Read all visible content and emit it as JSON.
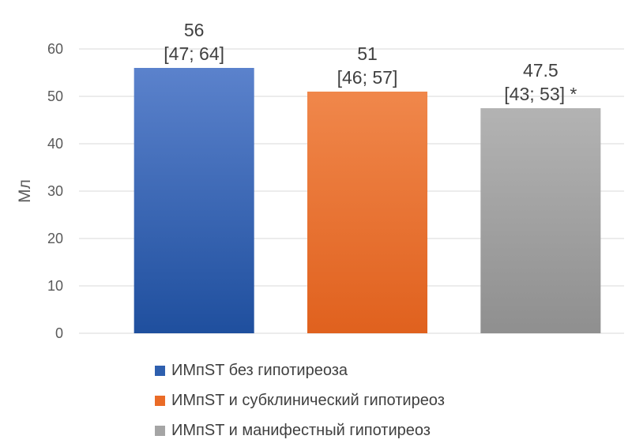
{
  "chart_data": {
    "type": "bar",
    "ylabel": "Мл",
    "ylim": [
      0,
      60
    ],
    "yticks": [
      0,
      10,
      20,
      30,
      40,
      50,
      60
    ],
    "grid": true,
    "legend_position": "bottom",
    "series": [
      {
        "name": "ИМпST без гипотиреоза",
        "value": 56,
        "label_lines": [
          "56",
          "[47; 64]"
        ],
        "color": "#2e5fae",
        "gradient": [
          "#5b82cc",
          "#1f4f9e"
        ]
      },
      {
        "name": "ИМпST и субклинический гипотиреоз",
        "value": 51,
        "label_lines": [
          "51",
          "[46; 57]"
        ],
        "color": "#ea6b27",
        "gradient": [
          "#f0874b",
          "#e0611e"
        ]
      },
      {
        "name": "ИМпST и манифестный гипотиреоз",
        "value": 47.5,
        "label_lines": [
          "47.5",
          "[43; 53] *"
        ],
        "color": "#a5a5a5",
        "gradient": [
          "#b3b3b3",
          "#8f8f8f"
        ]
      }
    ]
  }
}
